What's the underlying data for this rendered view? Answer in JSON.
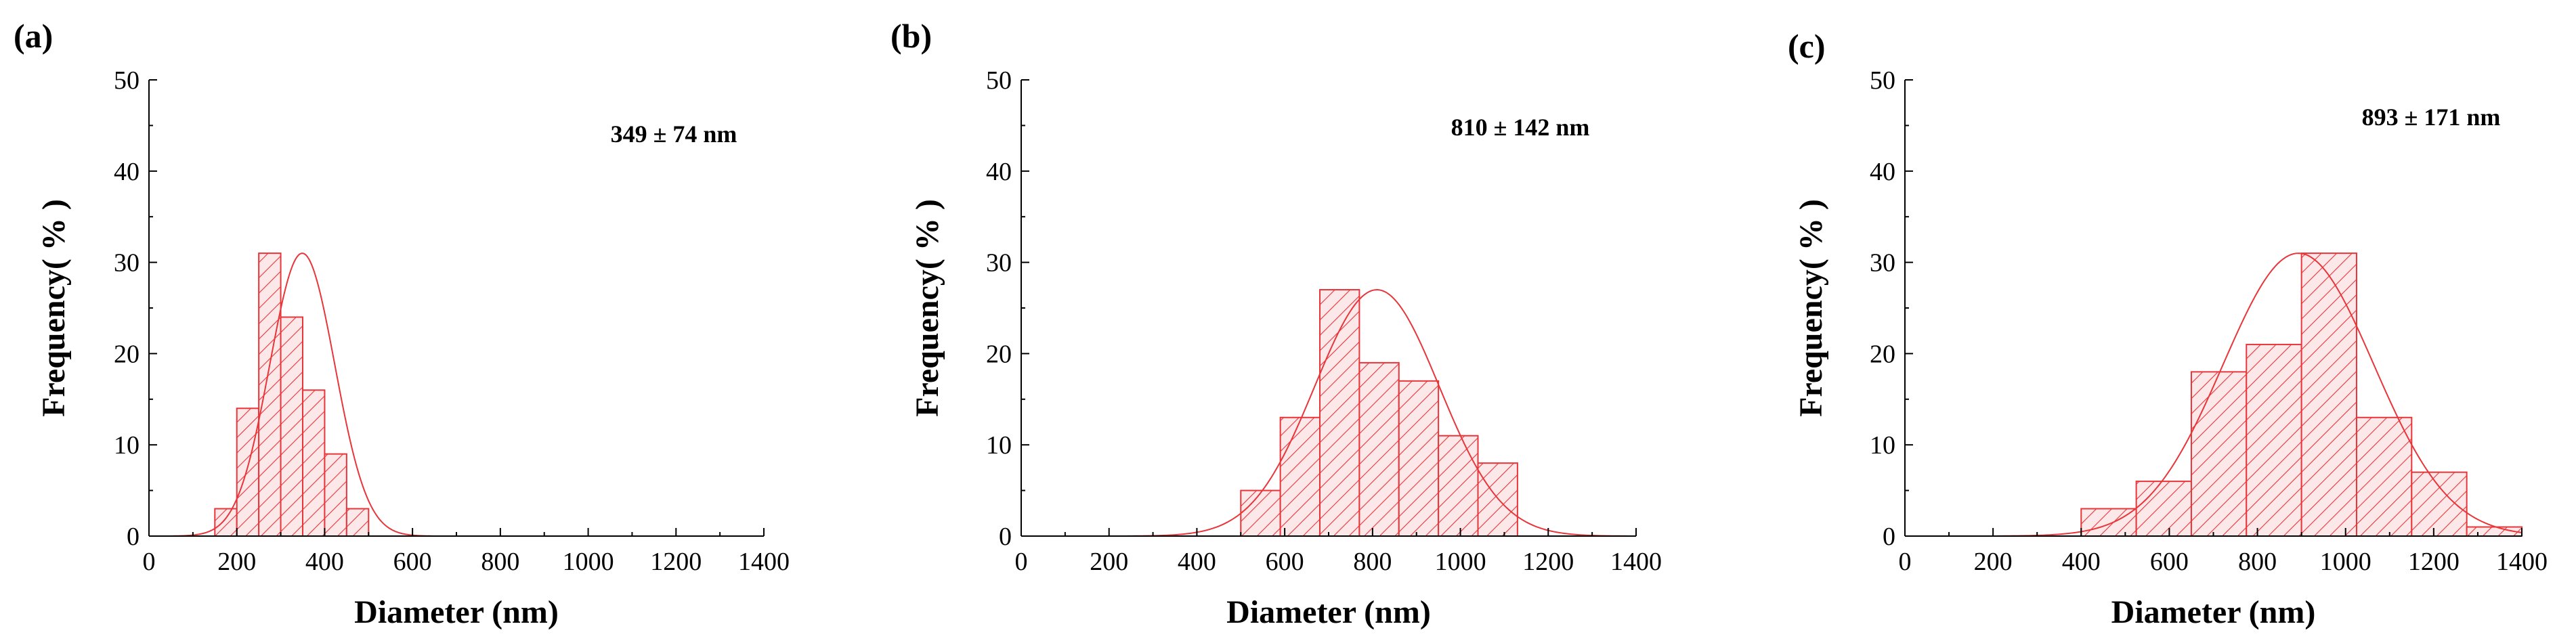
{
  "chart_data": [
    {
      "type": "bar",
      "panel_label": "(a)",
      "stat_label": "349 ± 74 nm",
      "xlabel": "Diameter (nm)",
      "ylabel": "Frequency( % )",
      "xlim": [
        0,
        1400
      ],
      "ylim": [
        0,
        50
      ],
      "xticks": [
        0,
        200,
        400,
        600,
        800,
        1000,
        1200,
        1400
      ],
      "yticks": [
        0,
        10,
        20,
        30,
        40,
        50
      ],
      "bin_width": 50,
      "bars": [
        {
          "x": 175,
          "value": 3
        },
        {
          "x": 225,
          "value": 14
        },
        {
          "x": 275,
          "value": 31
        },
        {
          "x": 325,
          "value": 24
        },
        {
          "x": 375,
          "value": 16
        },
        {
          "x": 425,
          "value": 9
        },
        {
          "x": 475,
          "value": 3
        }
      ],
      "fit": {
        "type": "gaussian",
        "mean": 349,
        "sd": 74,
        "peak": 31
      },
      "bar_color": "#e8353a"
    },
    {
      "type": "bar",
      "panel_label": "(b)",
      "stat_label": "810 ± 142 nm",
      "xlabel": "Diameter (nm)",
      "ylabel": "Frequency( % )",
      "xlim": [
        0,
        1400
      ],
      "ylim": [
        0,
        50
      ],
      "xticks": [
        0,
        200,
        400,
        600,
        800,
        1000,
        1200,
        1400
      ],
      "yticks": [
        0,
        10,
        20,
        30,
        40,
        50
      ],
      "bin_width": 90,
      "bars": [
        {
          "x": 545,
          "value": 5
        },
        {
          "x": 635,
          "value": 13
        },
        {
          "x": 725,
          "value": 27
        },
        {
          "x": 815,
          "value": 19
        },
        {
          "x": 905,
          "value": 17
        },
        {
          "x": 995,
          "value": 11
        },
        {
          "x": 1085,
          "value": 8
        }
      ],
      "fit": {
        "type": "gaussian",
        "mean": 810,
        "sd": 142,
        "peak": 27
      },
      "bar_color": "#e8353a"
    },
    {
      "type": "bar",
      "panel_label": "(c)",
      "stat_label": "893 ± 171 nm",
      "xlabel": "Diameter (nm)",
      "ylabel": "Frequency( % )",
      "xlim": [
        0,
        1400
      ],
      "ylim": [
        0,
        50
      ],
      "xticks": [
        0,
        200,
        400,
        600,
        800,
        1000,
        1200,
        1400
      ],
      "yticks": [
        0,
        10,
        20,
        30,
        40,
        50
      ],
      "bin_width": 125,
      "bars": [
        {
          "x": 462.5,
          "value": 3
        },
        {
          "x": 587.5,
          "value": 6
        },
        {
          "x": 712.5,
          "value": 18
        },
        {
          "x": 837.5,
          "value": 21
        },
        {
          "x": 962.5,
          "value": 31
        },
        {
          "x": 1087.5,
          "value": 13
        },
        {
          "x": 1212.5,
          "value": 7
        },
        {
          "x": 1337.5,
          "value": 1
        }
      ],
      "fit": {
        "type": "gaussian",
        "mean": 893,
        "sd": 171,
        "peak": 31
      },
      "bar_color": "#e8353a"
    }
  ]
}
